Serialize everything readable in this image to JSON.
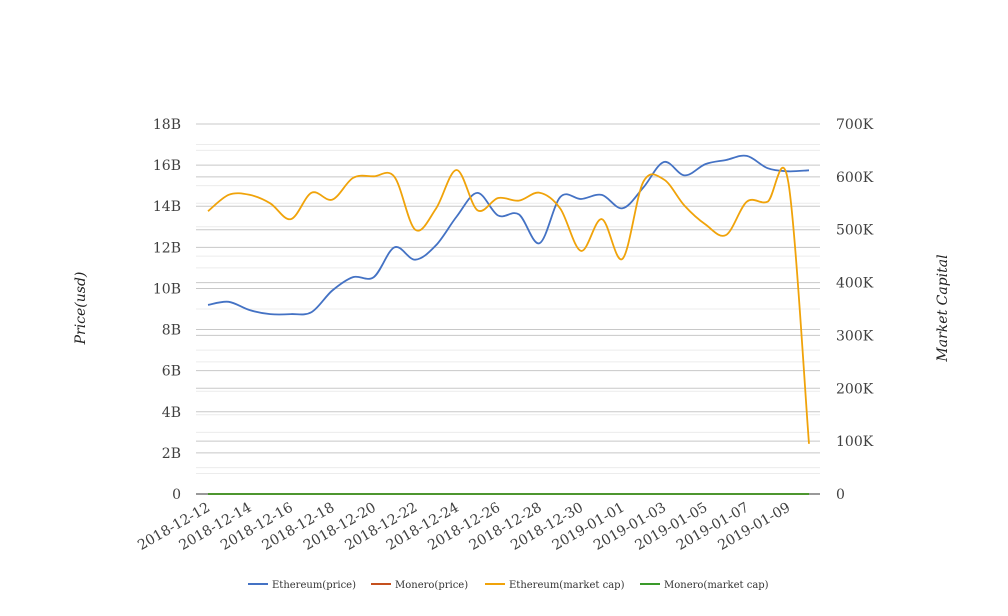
{
  "chart_data": {
    "type": "line",
    "x": [
      "2018-12-12",
      "2018-12-13",
      "2018-12-14",
      "2018-12-15",
      "2018-12-16",
      "2018-12-17",
      "2018-12-18",
      "2018-12-19",
      "2018-12-20",
      "2018-12-21",
      "2018-12-22",
      "2018-12-23",
      "2018-12-24",
      "2018-12-25",
      "2018-12-26",
      "2018-12-27",
      "2018-12-28",
      "2018-12-29",
      "2018-12-30",
      "2018-12-31",
      "2019-01-01",
      "2019-01-02",
      "2019-01-03",
      "2019-01-04",
      "2019-01-05",
      "2019-01-06",
      "2019-01-07",
      "2019-01-08",
      "2019-01-09",
      "2019-01-10"
    ],
    "x_ticks": [
      "2018-12-12",
      "2018-12-14",
      "2018-12-16",
      "2018-12-18",
      "2018-12-20",
      "2018-12-22",
      "2018-12-24",
      "2018-12-26",
      "2018-12-28",
      "2018-12-30",
      "2019-01-01",
      "2019-01-03",
      "2019-01-05",
      "2019-01-07",
      "2019-01-09"
    ],
    "ylabel_left": "Price(usd)",
    "ylabel_right": "Market Capital",
    "yticks_left": [
      "0",
      "2B",
      "4B",
      "6B",
      "8B",
      "10B",
      "12B",
      "14B",
      "16B",
      "18B"
    ],
    "yticks_right": [
      "0",
      "100K",
      "200K",
      "300K",
      "400K",
      "500K",
      "600K",
      "700K"
    ],
    "ylim_left": [
      0,
      18000000000
    ],
    "ylim_right": [
      0,
      700000
    ],
    "grid": true,
    "legend_position": "bottom",
    "series": [
      {
        "name": "Ethereum(price)",
        "axis": "left",
        "color": "#4472c4",
        "values": [
          9200000000,
          9350000000,
          8950000000,
          8750000000,
          8750000000,
          8850000000,
          9900000000,
          10550000000,
          10550000000,
          12000000000,
          11400000000,
          12100000000,
          13500000000,
          14650000000,
          13550000000,
          13600000000,
          12200000000,
          14450000000,
          14350000000,
          14550000000,
          13900000000,
          14900000000,
          16150000000,
          15500000000,
          16050000000,
          16250000000,
          16450000000,
          15850000000,
          15700000000,
          15750000000
        ]
      },
      {
        "name": "Monero(price)",
        "axis": "left",
        "color": "#c5501e",
        "values": [
          0,
          0,
          0,
          0,
          0,
          0,
          0,
          0,
          0,
          0,
          0,
          0,
          0,
          0,
          0,
          0,
          0,
          0,
          0,
          0,
          0,
          0,
          0,
          0,
          0,
          0,
          0,
          0,
          0,
          0
        ]
      },
      {
        "name": "Ethereum(market cap)",
        "axis": "right",
        "color": "#f0a30a",
        "values": [
          535000,
          566000,
          566000,
          550000,
          520000,
          570000,
          557000,
          598000,
          601000,
          600000,
          500000,
          540000,
          613000,
          537000,
          560000,
          555000,
          570000,
          540000,
          460000,
          520000,
          445000,
          590000,
          595000,
          545000,
          510000,
          490000,
          553000,
          553000,
          590000,
          95000
        ]
      },
      {
        "name": "Monero(market cap)",
        "axis": "right",
        "color": "#3a9a2a",
        "values": [
          0,
          0,
          0,
          0,
          0,
          0,
          0,
          0,
          0,
          0,
          0,
          0,
          0,
          0,
          0,
          0,
          0,
          0,
          0,
          0,
          0,
          0,
          0,
          0,
          0,
          0,
          0,
          0,
          0,
          0
        ]
      }
    ]
  }
}
